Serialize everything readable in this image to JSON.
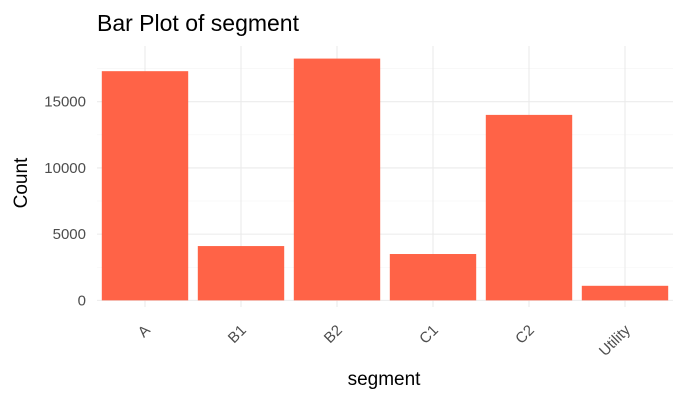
{
  "chart_data": {
    "type": "bar",
    "title": "Bar Plot of segment",
    "xlabel": "segment",
    "ylabel": "Count",
    "categories": [
      "A",
      "B1",
      "B2",
      "C1",
      "C2",
      "Utility"
    ],
    "values": [
      17300,
      4100,
      18250,
      3500,
      14000,
      1100
    ],
    "ylim": [
      -500,
      19200
    ],
    "yticks": [
      0,
      5000,
      10000,
      15000
    ],
    "ytick_labels": [
      "0",
      "5000",
      "10000",
      "15000"
    ],
    "bar_color": "#FF6347",
    "grid": true,
    "x_tick_rotation_deg": -45
  }
}
